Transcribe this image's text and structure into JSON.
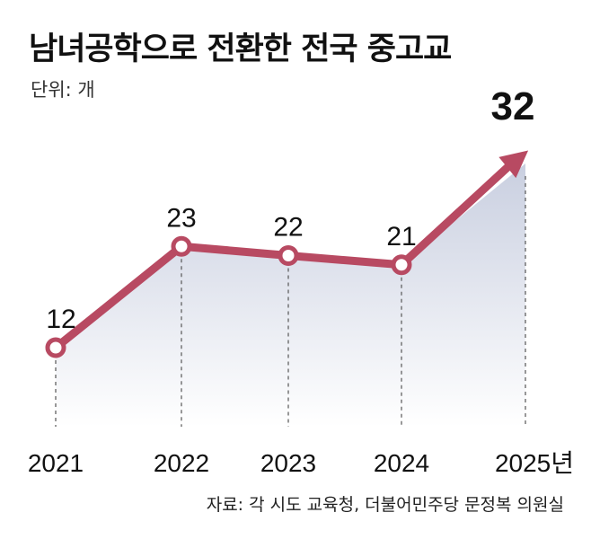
{
  "title": "남녀공학으로 전환한 전국 중고교",
  "unit_label": "단위: 개",
  "source": "자료: 각 시도 교육청, 더불어민주당 문정복 의원실",
  "colors": {
    "line": "#b84a62",
    "area_top": "#c9cfe0",
    "area_bottom": "#ffffff",
    "text": "#111111"
  },
  "chart_data": {
    "type": "line",
    "categories": [
      "2021",
      "2022",
      "2023",
      "2024",
      "2025년"
    ],
    "values": [
      12,
      23,
      22,
      21,
      32
    ],
    "data_labels": [
      "12",
      "23",
      "22",
      "21",
      "32"
    ],
    "highlight_last": true,
    "ylim": [
      0,
      40
    ],
    "grid": false,
    "legend": "none"
  }
}
